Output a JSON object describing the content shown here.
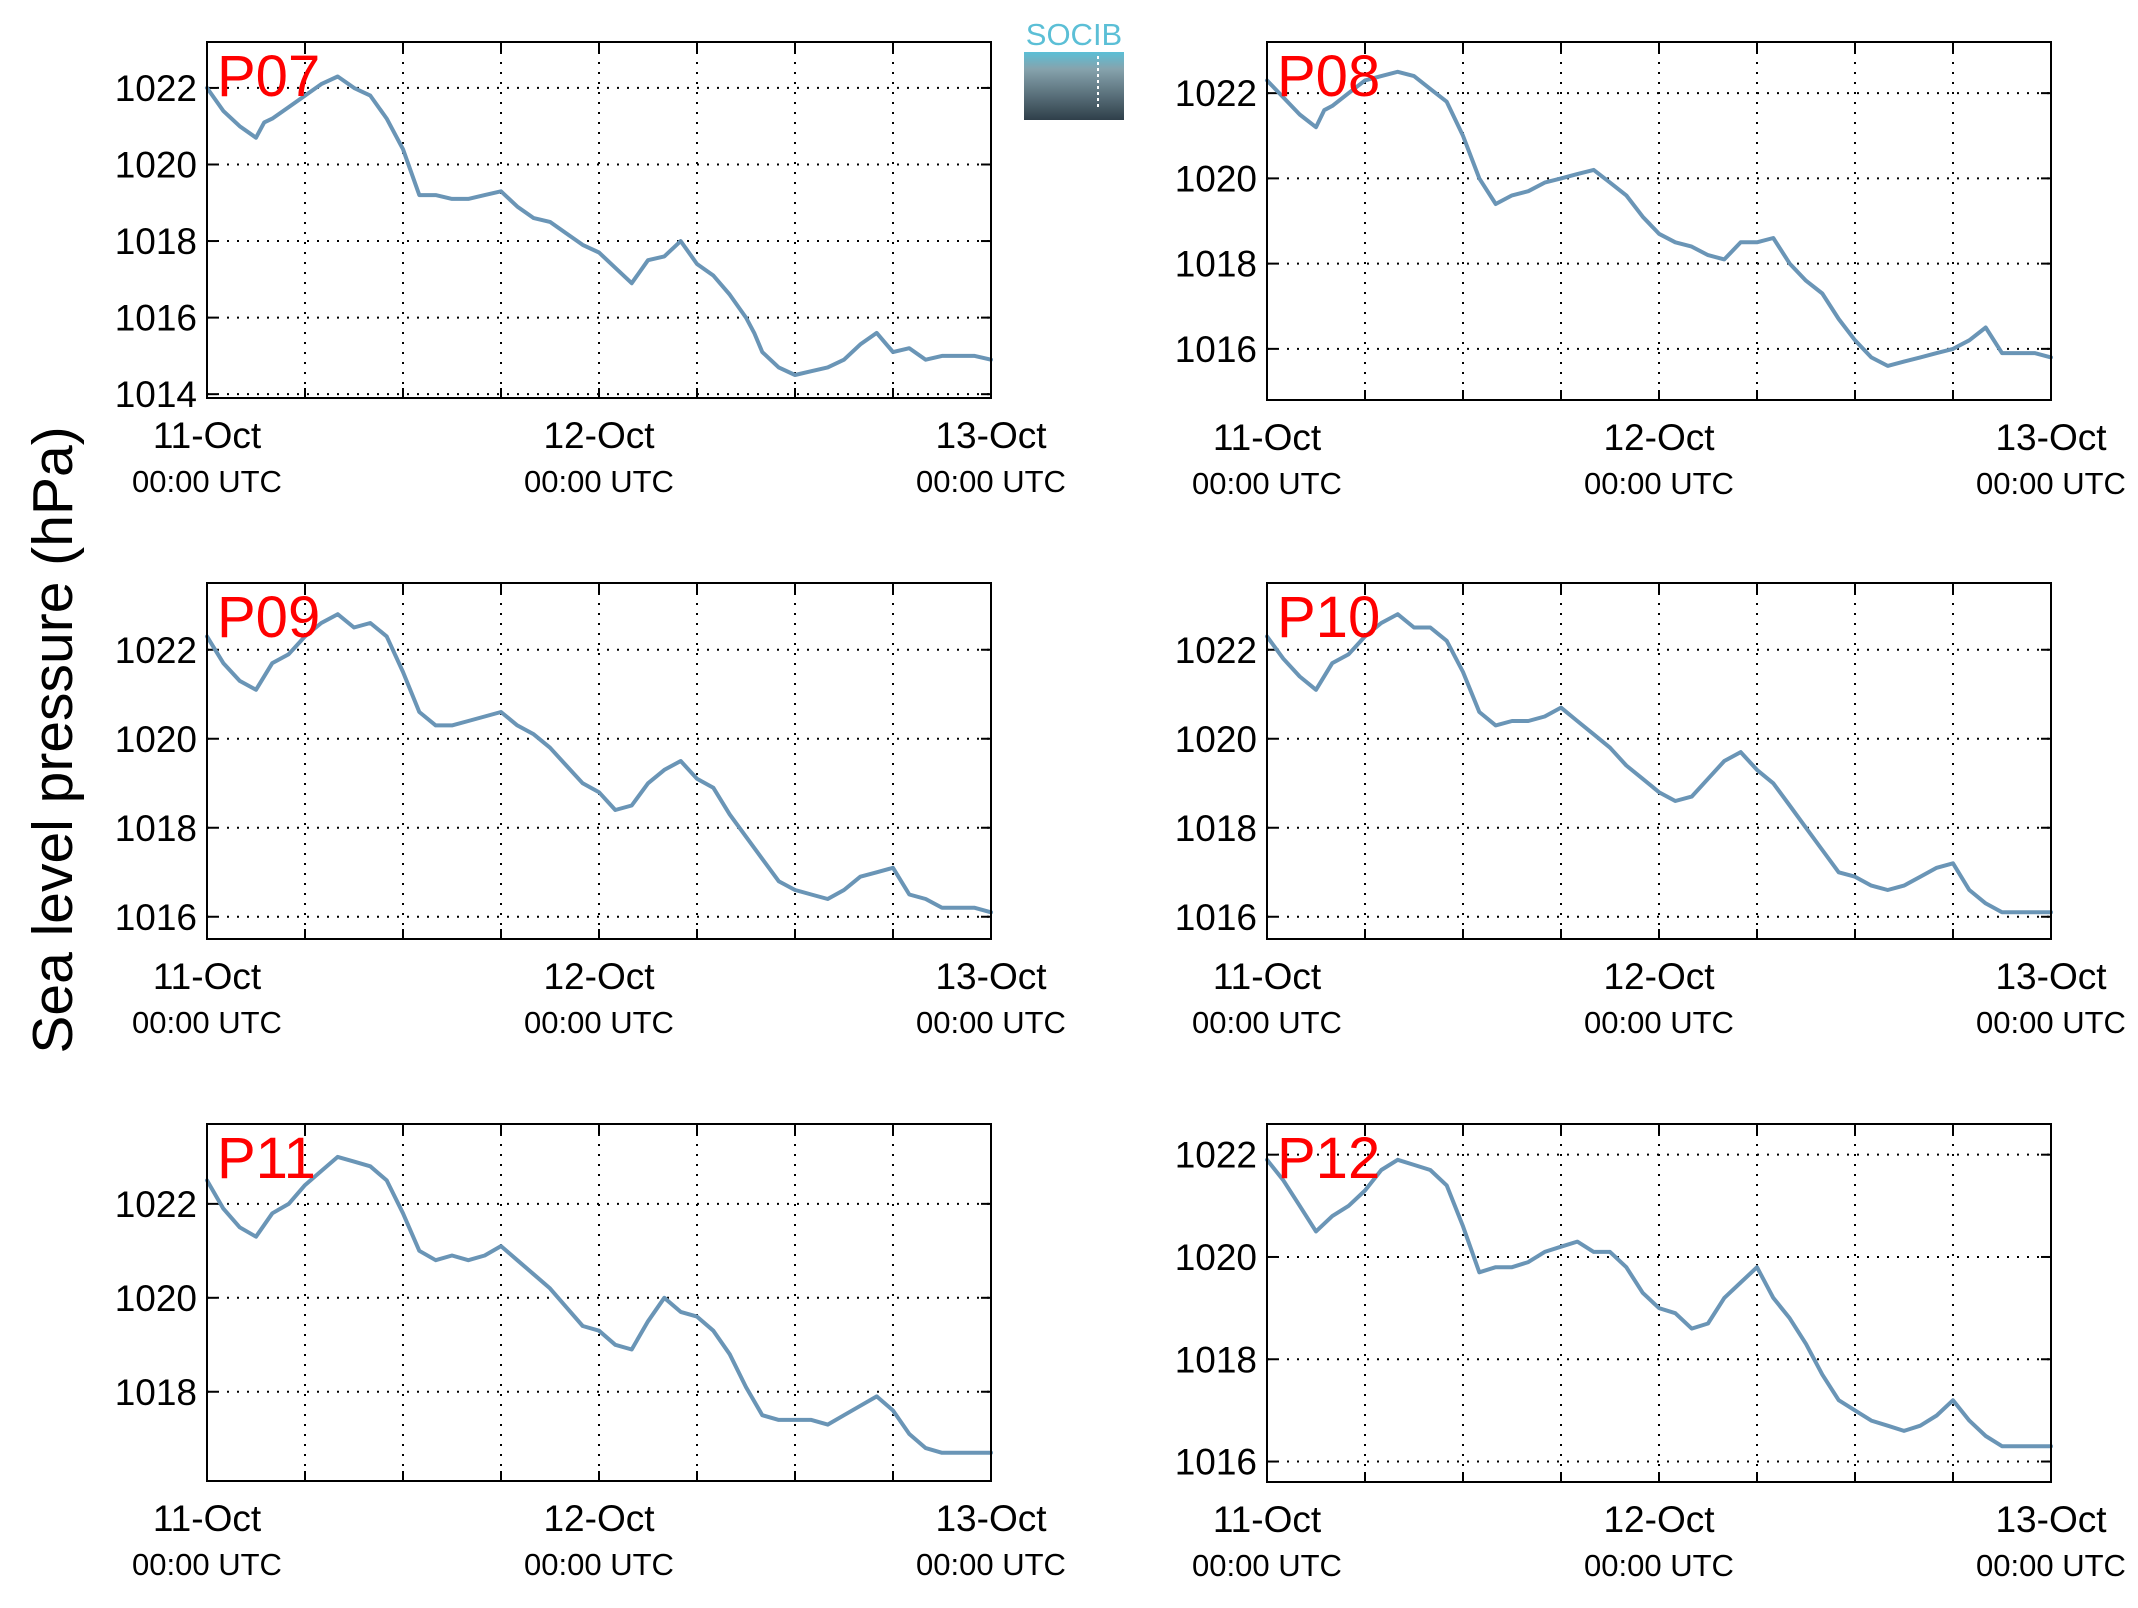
{
  "figure": {
    "ylabel": "Sea level pressure (hPa)",
    "logo_text": "SOCIB"
  },
  "colors": {
    "line": "#6a95b6",
    "panel_label": "#ff0000",
    "logo_top": "#5bbfd6",
    "logo_bottom": "#2f3f4a"
  },
  "chart_data": [
    {
      "type": "line",
      "panel_label": "P07",
      "xlim": [
        0,
        48
      ],
      "ylim": [
        1013.9,
        1023.2
      ],
      "yticks": [
        1014,
        1016,
        1018,
        1020,
        1022
      ],
      "xticks": [
        {
          "x": 0,
          "day": "11-Oct",
          "time": "00:00 UTC"
        },
        {
          "x": 24,
          "day": "12-Oct",
          "time": "00:00 UTC"
        },
        {
          "x": 48,
          "day": "13-Oct",
          "time": "00:00 UTC"
        }
      ],
      "grid": true,
      "series": [
        {
          "x": [
            0,
            1,
            2,
            3,
            3.5,
            4,
            5,
            6,
            7,
            8,
            9,
            9.5,
            10,
            11,
            12,
            13,
            14,
            15,
            16,
            17,
            18,
            19,
            20,
            21,
            22,
            23,
            24,
            25,
            26,
            27,
            28,
            29,
            30,
            31,
            32,
            33,
            33.5,
            34,
            35,
            36,
            37,
            38,
            39,
            40,
            41,
            42,
            43,
            44,
            45,
            46,
            46.5,
            47,
            48
          ],
          "y": [
            1022,
            1021.4,
            1021,
            1020.7,
            1021.1,
            1021.2,
            1021.5,
            1021.8,
            1022.1,
            1022.3,
            1022,
            1021.9,
            1021.8,
            1021.2,
            1020.4,
            1019.2,
            1019.2,
            1019.1,
            1019.1,
            1019.2,
            1019.3,
            1018.9,
            1018.6,
            1018.5,
            1018.2,
            1017.9,
            1017.7,
            1017.3,
            1016.9,
            1017.5,
            1017.6,
            1018,
            1017.4,
            1017.1,
            1016.6,
            1016,
            1015.6,
            1015.1,
            1014.7,
            1014.5,
            1014.6,
            1014.7,
            1014.9,
            1015.3,
            1015.6,
            1015.1,
            1015.2,
            1014.9,
            1015,
            1015,
            1015,
            1015,
            1014.9
          ]
        }
      ]
    },
    {
      "type": "line",
      "panel_label": "P08",
      "xlim": [
        0,
        48
      ],
      "ylim": [
        1014.8,
        1023.2
      ],
      "yticks": [
        1016,
        1018,
        1020,
        1022
      ],
      "xticks": [
        {
          "x": 0,
          "day": "11-Oct",
          "time": "00:00 UTC"
        },
        {
          "x": 24,
          "day": "12-Oct",
          "time": "00:00 UTC"
        },
        {
          "x": 48,
          "day": "13-Oct",
          "time": "00:00 UTC"
        }
      ],
      "grid": true,
      "series": [
        {
          "x": [
            0,
            1,
            2,
            3,
            3.5,
            4,
            5,
            6,
            7,
            8,
            9,
            10,
            11,
            12,
            13,
            14,
            15,
            16,
            17,
            18,
            19,
            20,
            21,
            22,
            23,
            24,
            25,
            26,
            27,
            28,
            29,
            30,
            31,
            32,
            33,
            34,
            35,
            36,
            37,
            38,
            39,
            40,
            41,
            42,
            43,
            44,
            45,
            46,
            47,
            48
          ],
          "y": [
            1022.3,
            1021.9,
            1021.5,
            1021.2,
            1021.6,
            1021.7,
            1022,
            1022.3,
            1022.4,
            1022.5,
            1022.4,
            1022.1,
            1021.8,
            1021,
            1020,
            1019.4,
            1019.6,
            1019.7,
            1019.9,
            1020,
            1020.1,
            1020.2,
            1019.9,
            1019.6,
            1019.1,
            1018.7,
            1018.5,
            1018.4,
            1018.2,
            1018.1,
            1018.5,
            1018.5,
            1018.6,
            1018,
            1017.6,
            1017.3,
            1016.7,
            1016.2,
            1015.8,
            1015.6,
            1015.7,
            1015.8,
            1015.9,
            1016,
            1016.2,
            1016.5,
            1015.9,
            1015.9,
            1015.9,
            1015.8
          ]
        }
      ]
    },
    {
      "type": "line",
      "panel_label": "P09",
      "xlim": [
        0,
        48
      ],
      "ylim": [
        1015.5,
        1023.5
      ],
      "yticks": [
        1016,
        1018,
        1020,
        1022
      ],
      "xticks": [
        {
          "x": 0,
          "day": "11-Oct",
          "time": "00:00 UTC"
        },
        {
          "x": 24,
          "day": "12-Oct",
          "time": "00:00 UTC"
        },
        {
          "x": 48,
          "day": "13-Oct",
          "time": "00:00 UTC"
        }
      ],
      "grid": true,
      "series": [
        {
          "x": [
            0,
            1,
            2,
            3,
            4,
            5,
            6,
            7,
            8,
            9,
            10,
            11,
            12,
            13,
            14,
            15,
            16,
            17,
            18,
            19,
            20,
            21,
            22,
            23,
            24,
            25,
            26,
            27,
            28,
            29,
            30,
            31,
            32,
            33,
            34,
            35,
            36,
            37,
            38,
            39,
            40,
            41,
            42,
            43,
            44,
            45,
            46,
            47,
            48
          ],
          "y": [
            1022.3,
            1021.7,
            1021.3,
            1021.1,
            1021.7,
            1021.9,
            1022.3,
            1022.6,
            1022.8,
            1022.5,
            1022.6,
            1022.3,
            1021.5,
            1020.6,
            1020.3,
            1020.3,
            1020.4,
            1020.5,
            1020.6,
            1020.3,
            1020.1,
            1019.8,
            1019.4,
            1019,
            1018.8,
            1018.4,
            1018.5,
            1019,
            1019.3,
            1019.5,
            1019.1,
            1018.9,
            1018.3,
            1017.8,
            1017.3,
            1016.8,
            1016.6,
            1016.5,
            1016.4,
            1016.6,
            1016.9,
            1017,
            1017.1,
            1016.5,
            1016.4,
            1016.2,
            1016.2,
            1016.2,
            1016.1
          ]
        }
      ]
    },
    {
      "type": "line",
      "panel_label": "P10",
      "xlim": [
        0,
        48
      ],
      "ylim": [
        1015.5,
        1023.5
      ],
      "yticks": [
        1016,
        1018,
        1020,
        1022
      ],
      "xticks": [
        {
          "x": 0,
          "day": "11-Oct",
          "time": "00:00 UTC"
        },
        {
          "x": 24,
          "day": "12-Oct",
          "time": "00:00 UTC"
        },
        {
          "x": 48,
          "day": "13-Oct",
          "time": "00:00 UTC"
        }
      ],
      "grid": true,
      "series": [
        {
          "x": [
            0,
            1,
            2,
            3,
            4,
            5,
            6,
            7,
            8,
            9,
            10,
            11,
            12,
            13,
            14,
            15,
            16,
            17,
            18,
            19,
            20,
            21,
            22,
            23,
            24,
            25,
            26,
            27,
            28,
            29,
            30,
            31,
            32,
            33,
            34,
            35,
            36,
            37,
            38,
            39,
            40,
            41,
            42,
            43,
            44,
            45,
            46,
            47,
            48
          ],
          "y": [
            1022.3,
            1021.8,
            1021.4,
            1021.1,
            1021.7,
            1021.9,
            1022.3,
            1022.6,
            1022.8,
            1022.5,
            1022.5,
            1022.2,
            1021.5,
            1020.6,
            1020.3,
            1020.4,
            1020.4,
            1020.5,
            1020.7,
            1020.4,
            1020.1,
            1019.8,
            1019.4,
            1019.1,
            1018.8,
            1018.6,
            1018.7,
            1019.1,
            1019.5,
            1019.7,
            1019.3,
            1019,
            1018.5,
            1018,
            1017.5,
            1017,
            1016.9,
            1016.7,
            1016.6,
            1016.7,
            1016.9,
            1017.1,
            1017.2,
            1016.6,
            1016.3,
            1016.1,
            1016.1,
            1016.1,
            1016.1
          ]
        }
      ]
    },
    {
      "type": "line",
      "panel_label": "P11",
      "xlim": [
        0,
        48
      ],
      "ylim": [
        1016.1,
        1023.7
      ],
      "yticks": [
        1018,
        1020,
        1022
      ],
      "xticks": [
        {
          "x": 0,
          "day": "11-Oct",
          "time": "00:00 UTC"
        },
        {
          "x": 24,
          "day": "12-Oct",
          "time": "00:00 UTC"
        },
        {
          "x": 48,
          "day": "13-Oct",
          "time": "00:00 UTC"
        }
      ],
      "grid": true,
      "series": [
        {
          "x": [
            0,
            1,
            2,
            3,
            4,
            5,
            6,
            7,
            8,
            9,
            10,
            11,
            12,
            13,
            14,
            15,
            16,
            17,
            18,
            19,
            20,
            21,
            22,
            23,
            24,
            25,
            26,
            27,
            28,
            29,
            30,
            31,
            32,
            33,
            34,
            35,
            36,
            37,
            38,
            39,
            40,
            41,
            42,
            43,
            44,
            45,
            46,
            47,
            48
          ],
          "y": [
            1022.5,
            1021.9,
            1021.5,
            1021.3,
            1021.8,
            1022,
            1022.4,
            1022.7,
            1023,
            1022.9,
            1022.8,
            1022.5,
            1021.8,
            1021,
            1020.8,
            1020.9,
            1020.8,
            1020.9,
            1021.1,
            1020.8,
            1020.5,
            1020.2,
            1019.8,
            1019.4,
            1019.3,
            1019,
            1018.9,
            1019.5,
            1020,
            1019.7,
            1019.6,
            1019.3,
            1018.8,
            1018.1,
            1017.5,
            1017.4,
            1017.4,
            1017.4,
            1017.3,
            1017.5,
            1017.7,
            1017.9,
            1017.6,
            1017.1,
            1016.8,
            1016.7,
            1016.7,
            1016.7,
            1016.7
          ]
        }
      ]
    },
    {
      "type": "line",
      "panel_label": "P12",
      "xlim": [
        0,
        48
      ],
      "ylim": [
        1015.6,
        1022.6
      ],
      "yticks": [
        1016,
        1018,
        1020,
        1022
      ],
      "xticks": [
        {
          "x": 0,
          "day": "11-Oct",
          "time": "00:00 UTC"
        },
        {
          "x": 24,
          "day": "12-Oct",
          "time": "00:00 UTC"
        },
        {
          "x": 48,
          "day": "13-Oct",
          "time": "00:00 UTC"
        }
      ],
      "grid": true,
      "series": [
        {
          "x": [
            0,
            1,
            2,
            3,
            4,
            5,
            6,
            7,
            8,
            9,
            10,
            11,
            12,
            13,
            14,
            15,
            16,
            17,
            18,
            19,
            20,
            21,
            22,
            23,
            24,
            25,
            26,
            27,
            28,
            29,
            30,
            31,
            32,
            33,
            34,
            35,
            36,
            37,
            38,
            39,
            40,
            41,
            42,
            43,
            44,
            45,
            46,
            47,
            48
          ],
          "y": [
            1021.9,
            1021.5,
            1021,
            1020.5,
            1020.8,
            1021,
            1021.3,
            1021.7,
            1021.9,
            1021.8,
            1021.7,
            1021.4,
            1020.6,
            1019.7,
            1019.8,
            1019.8,
            1019.9,
            1020.1,
            1020.2,
            1020.3,
            1020.1,
            1020.1,
            1019.8,
            1019.3,
            1019,
            1018.9,
            1018.6,
            1018.7,
            1019.2,
            1019.5,
            1019.8,
            1019.2,
            1018.8,
            1018.3,
            1017.7,
            1017.2,
            1017,
            1016.8,
            1016.7,
            1016.6,
            1016.7,
            1016.9,
            1017.2,
            1016.8,
            1016.5,
            1016.3,
            1016.3,
            1016.3,
            1016.3
          ]
        }
      ]
    }
  ]
}
